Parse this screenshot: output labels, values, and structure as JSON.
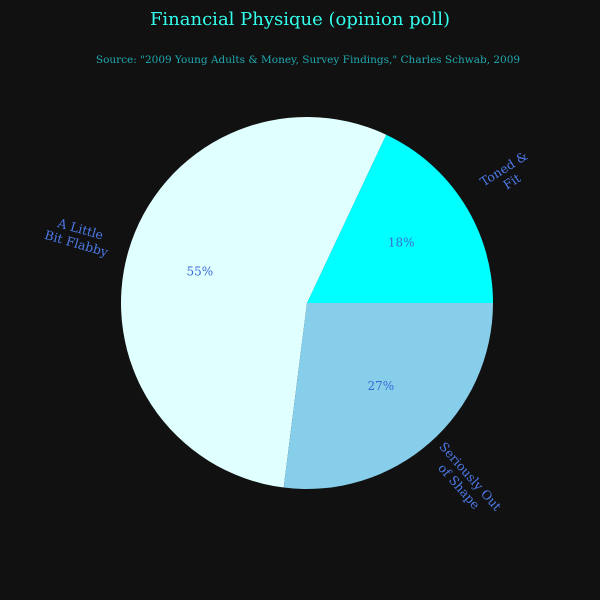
{
  "chart_data": {
    "type": "pie",
    "title": "Financial Physique (opinion poll)",
    "subtitle": "Source: \"2009 Young Adults & Money, Survey Findings,\" Charles Schwab, 2009",
    "slices": [
      {
        "label": "Toned & Fit",
        "value": 18,
        "pct_label": "18%",
        "color": "#00ffff"
      },
      {
        "label": "A Little Bit Flabby",
        "value": 55,
        "pct_label": "55%",
        "color": "#e0ffff"
      },
      {
        "label": "Seriously Out of Shape",
        "value": 27,
        "pct_label": "27%",
        "color": "#87ceeb"
      }
    ],
    "start_angle_deg": 0,
    "direction": "counterclockwise",
    "legend": "none",
    "text_colors": {
      "title": "#33ffee",
      "subtitle": "#1fa8b0",
      "labels": "#4d7ae8",
      "percent": "#3a6bd6"
    },
    "background": "#111111"
  }
}
